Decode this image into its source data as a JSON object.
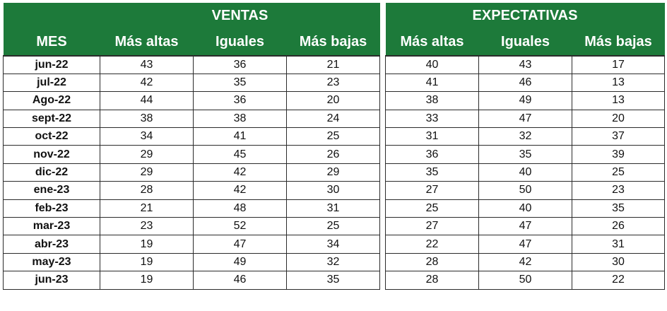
{
  "chart_data": {
    "type": "table",
    "groups": [
      {
        "title": "VENTAS",
        "columns": [
          "MES",
          "Más altas",
          "Iguales",
          "Más bajas"
        ],
        "rows": [
          [
            "jun-22",
            43,
            36,
            21
          ],
          [
            "jul-22",
            42,
            35,
            23
          ],
          [
            "Ago-22",
            44,
            36,
            20
          ],
          [
            "sept-22",
            38,
            38,
            24
          ],
          [
            "oct-22",
            34,
            41,
            25
          ],
          [
            "nov-22",
            29,
            45,
            26
          ],
          [
            "dic-22",
            29,
            42,
            29
          ],
          [
            "ene-23",
            28,
            42,
            30
          ],
          [
            "feb-23",
            21,
            48,
            31
          ],
          [
            "mar-23",
            23,
            52,
            25
          ],
          [
            "abr-23",
            19,
            47,
            34
          ],
          [
            "may-23",
            19,
            49,
            32
          ],
          [
            "jun-23",
            19,
            46,
            35
          ]
        ]
      },
      {
        "title": "EXPECTATIVAS",
        "columns": [
          "Más altas",
          "Iguales",
          "Más bajas"
        ],
        "rows": [
          [
            40,
            43,
            17
          ],
          [
            41,
            46,
            13
          ],
          [
            38,
            49,
            13
          ],
          [
            33,
            47,
            20
          ],
          [
            31,
            32,
            37
          ],
          [
            36,
            35,
            39
          ],
          [
            35,
            40,
            25
          ],
          [
            27,
            50,
            23
          ],
          [
            25,
            40,
            35
          ],
          [
            27,
            47,
            26
          ],
          [
            22,
            47,
            31
          ],
          [
            28,
            42,
            30
          ],
          [
            28,
            50,
            22
          ]
        ]
      }
    ],
    "colors": {
      "header_bg": "#1d7a3a",
      "header_text": "#ffffff",
      "border": "#2b2b2b"
    }
  }
}
